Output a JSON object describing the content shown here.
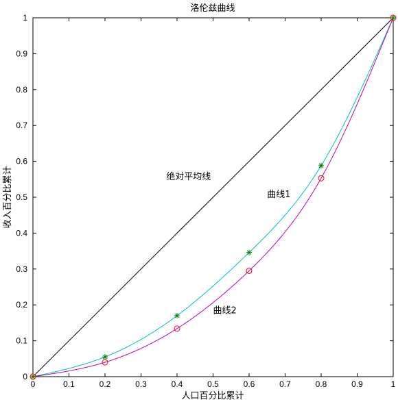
{
  "chart_data": {
    "type": "line",
    "title": "洛伦兹曲线",
    "xlabel": "人口百分比累计",
    "ylabel": "收入百分比累计",
    "xlim": [
      0,
      1
    ],
    "ylim": [
      0,
      1
    ],
    "xticks": [
      "0",
      "0.1",
      "0.2",
      "0.3",
      "0.4",
      "0.5",
      "0.6",
      "0.7",
      "0.8",
      "0.9",
      "1"
    ],
    "yticks": [
      "0",
      "0.1",
      "0.2",
      "0.3",
      "0.4",
      "0.5",
      "0.6",
      "0.7",
      "0.8",
      "0.9",
      "1"
    ],
    "grid": false,
    "series": [
      {
        "name": "绝对平均线",
        "color": "#000000",
        "x": [
          0,
          1
        ],
        "y": [
          0,
          1
        ]
      },
      {
        "name": "曲线1",
        "color": "#00c0c0",
        "marker": "star",
        "marker_color": "#008000",
        "x": [
          0,
          0.2,
          0.4,
          0.6,
          0.8,
          1
        ],
        "y": [
          0,
          0.055,
          0.17,
          0.346,
          0.588,
          1
        ]
      },
      {
        "name": "曲线2",
        "color": "#c000c0",
        "marker": "circle",
        "marker_color": "#ff0000",
        "x": [
          0,
          0.2,
          0.4,
          0.6,
          0.8,
          1
        ],
        "y": [
          0,
          0.04,
          0.134,
          0.295,
          0.553,
          1
        ]
      }
    ],
    "annotations": [
      {
        "text": "绝对平均线",
        "x": 0.37,
        "y": 0.55
      },
      {
        "text": "曲线1",
        "x": 0.65,
        "y": 0.5
      },
      {
        "text": "曲线2",
        "x": 0.5,
        "y": 0.177
      }
    ]
  }
}
